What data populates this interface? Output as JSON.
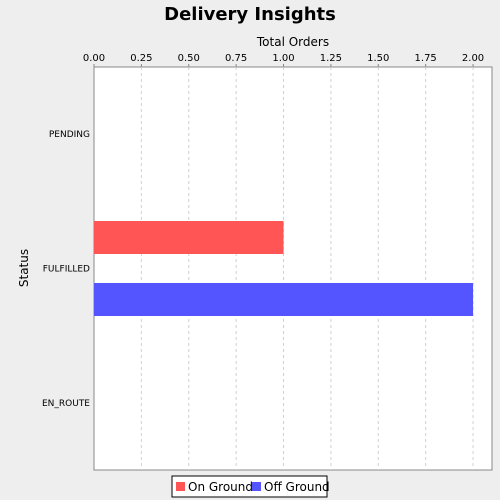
{
  "chart_data": {
    "type": "bar",
    "orientation": "horizontal",
    "title": "Delivery Insights",
    "xlabel": "Total Orders",
    "ylabel": "Status",
    "categories": [
      "PENDING",
      "FULFILLED",
      "EN_ROUTE"
    ],
    "series": [
      {
        "name": "On Ground",
        "color": "#ff5555",
        "values": [
          0,
          1,
          0
        ]
      },
      {
        "name": "Off Ground",
        "color": "#5555ff",
        "values": [
          0,
          2,
          0
        ]
      }
    ],
    "xlim": [
      0,
      2.1
    ],
    "xticks": [
      "0.00",
      "0.25",
      "0.50",
      "0.75",
      "1.00",
      "1.25",
      "1.50",
      "1.75",
      "2.00"
    ],
    "grid": true,
    "legend_position": "bottom"
  }
}
